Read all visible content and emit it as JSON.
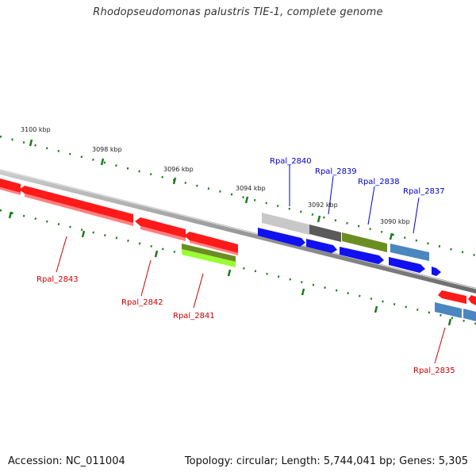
{
  "title": "Rhodopseudomonas palustris TIE-1, complete genome",
  "footer": {
    "accession": "Accession: NC_011004",
    "summary": "Topology: circular; Length: 5,744,041 bp; Genes: 5,305"
  },
  "scale_labels": [
    "3100 kbp",
    "3098 kbp",
    "3096 kbp",
    "3094 kbp",
    "3092 kbp",
    "3090 kbp"
  ],
  "gene_labels": {
    "top": [
      "Rpal_2840",
      "Rpal_2839",
      "Rpal_2838",
      "Rpal_2837"
    ],
    "bottom": [
      "Rpal_2843",
      "Rpal_2842",
      "Rpal_2841",
      "Rpal_2835"
    ]
  },
  "colors": {
    "forward_label": "#0000cc",
    "reverse_label": "#cc0000",
    "backbone": "#808080",
    "tick": "#1a7a1a",
    "red_gene": "#ff1a1a",
    "blue_gene": "#1010f0",
    "olive_gene": "#6b8e23",
    "lime_gene": "#99ff33",
    "steel_gene": "#4a86c0",
    "light_gray_gene": "#c8c8c8",
    "dark_gray_gene": "#5a5a5a"
  }
}
